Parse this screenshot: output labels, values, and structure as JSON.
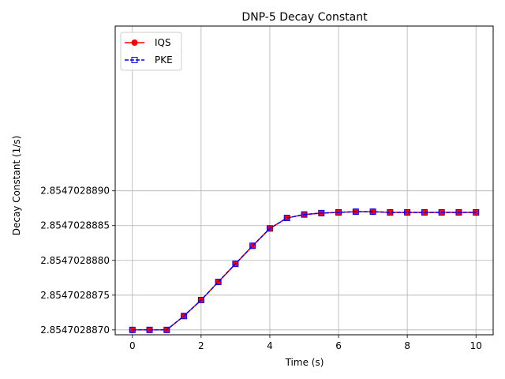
{
  "chart_data": {
    "type": "line",
    "title": "DNP-5 Decay Constant",
    "xlabel": "Time (s)",
    "ylabel": "Decay Constant (1/s)",
    "xlim": [
      -0.5,
      10.5
    ],
    "ylim": [
      2.85470288693,
      2.85470289137
    ],
    "xticks": [
      0,
      2,
      4,
      6,
      8,
      10
    ],
    "xtick_labels": [
      "0",
      "2",
      "4",
      "6",
      "8",
      "10"
    ],
    "yticks": [
      2.854702887,
      2.8547028875,
      2.854702888,
      2.8547028885,
      2.854702889
    ],
    "ytick_labels": [
      "2.8547028870",
      "2.8547028875",
      "2.8547028880",
      "2.8547028885",
      "2.8547028890"
    ],
    "grid": true,
    "legend_position": "top-left",
    "x": [
      0,
      0.5,
      1,
      1.5,
      2,
      2.5,
      3,
      3.5,
      4,
      4.5,
      5,
      5.5,
      6,
      6.5,
      7,
      7.5,
      8,
      8.5,
      9,
      9.5,
      10
    ],
    "series": [
      {
        "name": "IQS",
        "color": "#ff0000",
        "linestyle": "solid",
        "marker": "circle",
        "values": [
          2.854702887,
          2.854702887,
          2.854702887,
          2.8547028872,
          2.85470288743,
          2.85470288769,
          2.85470288795,
          2.85470288821,
          2.85470288846,
          2.85470288861,
          2.85470288866,
          2.85470288868,
          2.85470288869,
          2.8547028887,
          2.8547028887,
          2.85470288869,
          2.85470288869,
          2.85470288869,
          2.85470288869,
          2.85470288869,
          2.85470288869
        ]
      },
      {
        "name": "PKE",
        "color": "#0000ff",
        "linestyle": "dashed",
        "marker": "square",
        "values": [
          2.854702887,
          2.854702887,
          2.854702887,
          2.8547028872,
          2.85470288743,
          2.85470288769,
          2.85470288795,
          2.85470288821,
          2.85470288846,
          2.85470288861,
          2.85470288866,
          2.85470288868,
          2.85470288869,
          2.8547028887,
          2.8547028887,
          2.85470288869,
          2.85470288869,
          2.85470288869,
          2.85470288869,
          2.85470288869,
          2.85470288869
        ]
      }
    ]
  }
}
